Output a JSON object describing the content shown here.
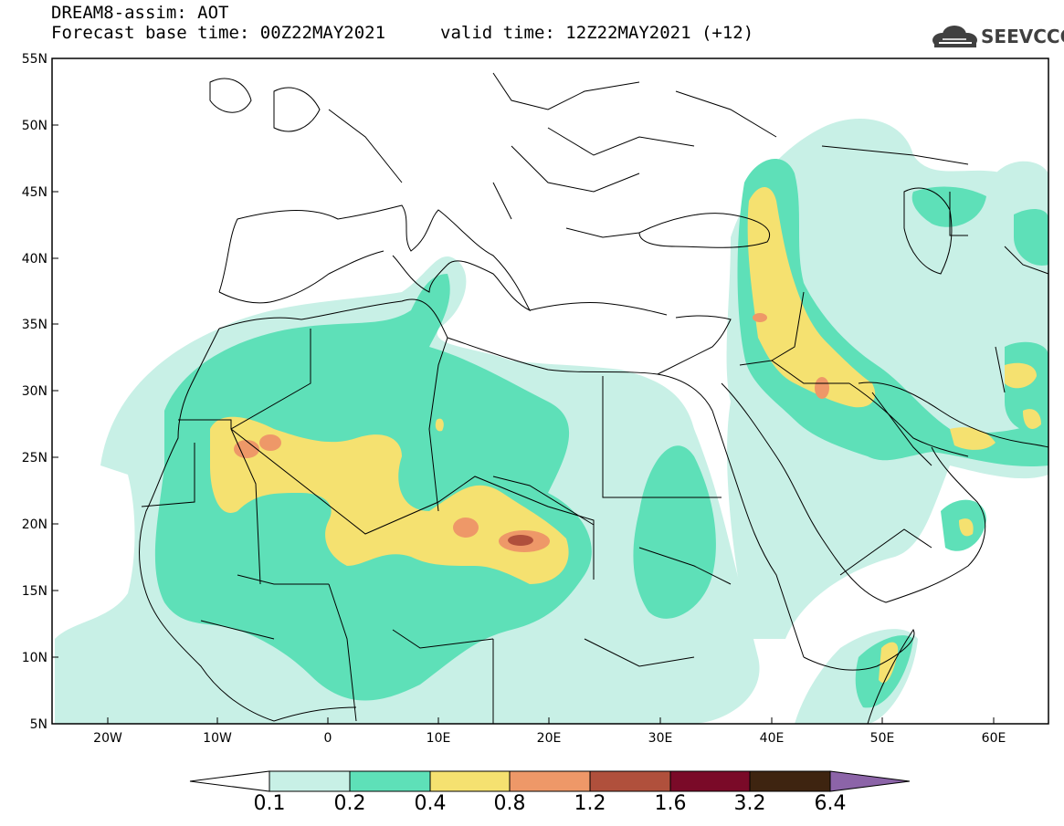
{
  "title": {
    "line1": "DREAM8-assim: AOT",
    "line2": "Forecast base time: 00Z22MAY2021",
    "line2b": "valid time: 12Z22MAY2021 (+12)"
  },
  "logo": {
    "text": "SEEVCCC"
  },
  "axes": {
    "lat_labels": [
      "55N",
      "50N",
      "45N",
      "40N",
      "35N",
      "30N",
      "25N",
      "20N",
      "15N",
      "10N",
      "5N"
    ],
    "lon_labels": [
      "20W",
      "10W",
      "0",
      "10E",
      "20E",
      "30E",
      "40E",
      "50E",
      "60E"
    ]
  },
  "colorbar": {
    "labels": [
      "0.1",
      "0.2",
      "0.4",
      "0.8",
      "1.2",
      "1.6",
      "3.2",
      "6.4"
    ],
    "colors": [
      "#c8f0e6",
      "#5ee0b8",
      "#f5e170",
      "#ee9868",
      "#b0503c",
      "#7a0a28",
      "#3e2410",
      "#8c64a8"
    ]
  }
}
